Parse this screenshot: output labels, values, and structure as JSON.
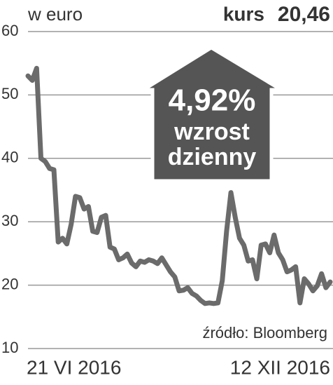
{
  "chart_data": {
    "type": "line",
    "y_label": "w euro",
    "price_label": "kurs",
    "price": "20,46",
    "annotation": [
      "4,92%",
      "wzrost",
      "dzienny"
    ],
    "source": "źródło: Bloomberg",
    "categories": [
      "21 VI 2016",
      null,
      null,
      null,
      null,
      null,
      null,
      null,
      null,
      null,
      null,
      null,
      null,
      null,
      null,
      null,
      null,
      null,
      null,
      null,
      null,
      null,
      null,
      null,
      null,
      null,
      null,
      null,
      null,
      null,
      null,
      null,
      null,
      null,
      null,
      null,
      null,
      null,
      null,
      null,
      null,
      null,
      null,
      null,
      null,
      null,
      null,
      null,
      null,
      null,
      null,
      null,
      null,
      null,
      null,
      null,
      null,
      null,
      null,
      null,
      null,
      null,
      null,
      null,
      null,
      null,
      null,
      null,
      null,
      null,
      "12 XII 2016"
    ],
    "values": [
      53,
      52.3,
      54.2,
      40,
      39.5,
      38.4,
      38.2,
      26.8,
      27.4,
      26.5,
      29.6,
      34,
      33.8,
      32,
      32.4,
      28.5,
      28.3,
      30.7,
      31,
      26,
      25.7,
      24,
      24.3,
      24.9,
      23.5,
      22.9,
      23.8,
      23.6,
      24,
      23.8,
      23.4,
      24.3,
      23.2,
      22.1,
      21.3,
      19.1,
      19.2,
      19.6,
      18.7,
      18.3,
      17.6,
      17.1,
      17.2,
      17.1,
      17.2,
      20.7,
      28.5,
      34.6,
      30.7,
      27.4,
      26.3,
      23.8,
      24,
      21,
      26.3,
      26.5,
      25.1,
      27.9,
      25.1,
      24,
      22.1,
      22.4,
      22.9,
      17.2,
      21,
      20.2,
      19.1,
      19.9,
      21.8,
      19.6,
      20.5
    ],
    "color": "#6b6b6b",
    "ylim": [
      10,
      60
    ],
    "yticks": [
      10,
      20,
      30,
      40,
      50,
      60
    ],
    "grid": true
  }
}
